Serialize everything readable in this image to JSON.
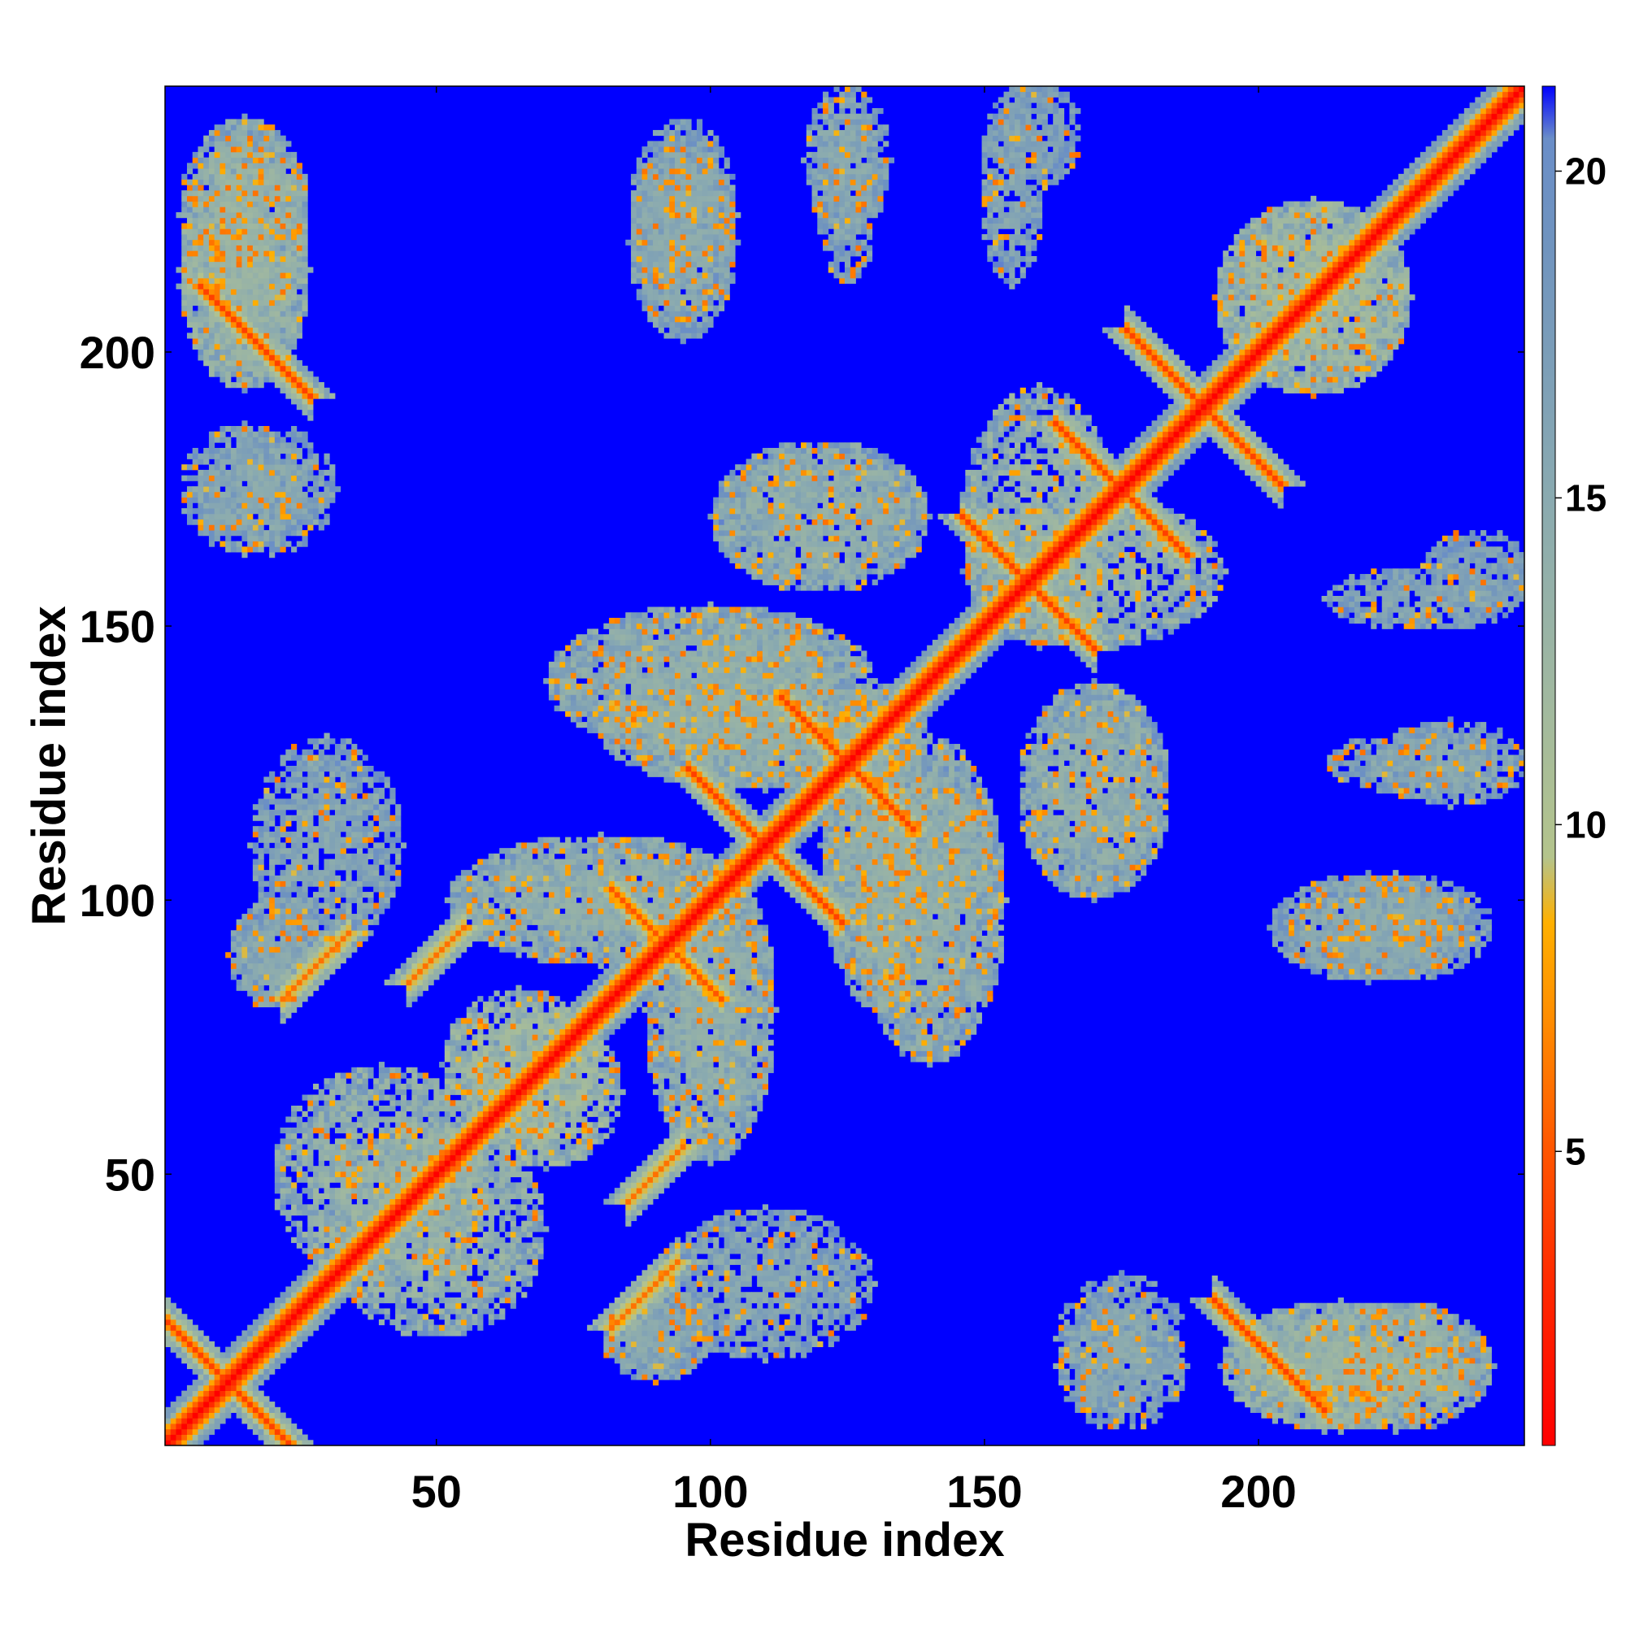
{
  "chart_data": {
    "type": "heatmap",
    "title": "",
    "xlabel": "Residue index",
    "ylabel": "Residue index",
    "n_residues": 248,
    "xlim": [
      1,
      248
    ],
    "ylim": [
      1,
      248
    ],
    "x_ticks": [
      50,
      100,
      150,
      200
    ],
    "y_ticks": [
      50,
      100,
      150,
      200
    ],
    "colorbar": {
      "ticks": [
        5,
        10,
        15,
        20
      ],
      "range": [
        0.5,
        21.3
      ],
      "max_color": "#0000ff"
    },
    "colormap": [
      {
        "value": 0.5,
        "color": "#ff0000"
      },
      {
        "value": 3.0,
        "color": "#ff2a00"
      },
      {
        "value": 5.0,
        "color": "#ff5500"
      },
      {
        "value": 7.0,
        "color": "#ff8c00"
      },
      {
        "value": 8.5,
        "color": "#ffb000"
      },
      {
        "value": 9.5,
        "color": "#b4c48c"
      },
      {
        "value": 12.0,
        "color": "#a0b8a0"
      },
      {
        "value": 15.0,
        "color": "#8aaab0"
      },
      {
        "value": 19.0,
        "color": "#6f93bf"
      },
      {
        "value": 20.5,
        "color": "#6a8ec8"
      },
      {
        "value": 21.3,
        "color": "#0000ff"
      }
    ],
    "background_value": 21.3,
    "diagonal_value": 0.5,
    "contact_features": [
      {
        "type": "antidiagonal",
        "center": [
          12,
          12
        ],
        "half_length": 14,
        "value": 4
      },
      {
        "type": "antidiagonal",
        "center": [
          17,
          202
        ],
        "half_length": 10,
        "value": 4
      },
      {
        "type": "antidiagonal",
        "center": [
          202,
          17
        ],
        "half_length": 10,
        "value": 4
      },
      {
        "type": "antidiagonal",
        "center": [
          110,
          110
        ],
        "half_length": 14,
        "value": 4
      },
      {
        "type": "antidiagonal",
        "center": [
          125,
          125
        ],
        "half_length": 12,
        "value": 4
      },
      {
        "type": "antidiagonal",
        "center": [
          92,
          92
        ],
        "half_length": 10,
        "value": 5
      },
      {
        "type": "antidiagonal",
        "center": [
          158,
          158
        ],
        "half_length": 12,
        "value": 4
      },
      {
        "type": "antidiagonal",
        "center": [
          175,
          175
        ],
        "half_length": 12,
        "value": 4
      },
      {
        "type": "antidiagonal",
        "center": [
          190,
          190
        ],
        "half_length": 14,
        "value": 4
      },
      {
        "type": "diagonal",
        "center": [
          28,
          88
        ],
        "half_length": 6,
        "value": 6
      },
      {
        "type": "diagonal",
        "center": [
          88,
          28
        ],
        "half_length": 6,
        "value": 6
      },
      {
        "type": "diagonal",
        "center": [
          50,
          90
        ],
        "half_length": 5,
        "value": 6
      },
      {
        "type": "diagonal",
        "center": [
          90,
          50
        ],
        "half_length": 5,
        "value": 6
      },
      {
        "type": "diagonal",
        "center": [
          88,
          28
        ],
        "half_length": 5,
        "value": 6
      }
    ],
    "diffuse_regions": [
      {
        "center": [
          15,
          215
        ],
        "radius": [
          12,
          22
        ],
        "value": 14
      },
      {
        "center": [
          215,
          15
        ],
        "radius": [
          22,
          12
        ],
        "value": 14
      },
      {
        "center": [
          225,
          15
        ],
        "radius": [
          18,
          12
        ],
        "value": 15
      },
      {
        "center": [
          15,
          225
        ],
        "radius": [
          12,
          18
        ],
        "value": 15
      },
      {
        "center": [
          95,
          220
        ],
        "radius": [
          10,
          18
        ],
        "value": 16
      },
      {
        "center": [
          220,
          95
        ],
        "radius": [
          18,
          10
        ],
        "value": 16
      },
      {
        "center": [
          125,
          235
        ],
        "radius": [
          8,
          14
        ],
        "value": 16
      },
      {
        "center": [
          160,
          240
        ],
        "radius": [
          8,
          10
        ],
        "value": 17
      },
      {
        "center": [
          110,
          130
        ],
        "radius": [
          30,
          10
        ],
        "value": 15
      },
      {
        "center": [
          130,
          110
        ],
        "radius": [
          10,
          30
        ],
        "value": 15
      },
      {
        "center": [
          80,
          100
        ],
        "radius": [
          28,
          12
        ],
        "value": 15
      },
      {
        "center": [
          100,
          80
        ],
        "radius": [
          12,
          28
        ],
        "value": 15
      },
      {
        "center": [
          140,
          100
        ],
        "radius": [
          14,
          30
        ],
        "value": 15
      },
      {
        "center": [
          100,
          140
        ],
        "radius": [
          30,
          14
        ],
        "value": 15
      },
      {
        "center": [
          170,
          120
        ],
        "radius": [
          14,
          20
        ],
        "value": 15
      },
      {
        "center": [
          120,
          170
        ],
        "radius": [
          20,
          14
        ],
        "value": 15
      },
      {
        "center": [
          230,
          155
        ],
        "radius": [
          18,
          6
        ],
        "value": 16
      },
      {
        "center": [
          230,
          125
        ],
        "radius": [
          18,
          6
        ],
        "value": 16
      },
      {
        "center": [
          225,
          95
        ],
        "radius": [
          18,
          10
        ],
        "value": 16
      },
      {
        "center": [
          30,
          110
        ],
        "radius": [
          14,
          20
        ],
        "value": 16
      },
      {
        "center": [
          40,
          50
        ],
        "radius": [
          20,
          20
        ],
        "value": 14
      },
      {
        "center": [
          65,
          70
        ],
        "radius": [
          14,
          14
        ],
        "value": 13
      },
      {
        "center": [
          175,
          20
        ],
        "radius": [
          12,
          12
        ],
        "value": 16
      },
      {
        "center": [
          15,
          175
        ],
        "radius": [
          12,
          12
        ],
        "value": 16
      },
      {
        "center": [
          160,
          170
        ],
        "radius": [
          14,
          24
        ],
        "value": 14
      },
      {
        "center": [
          210,
          210
        ],
        "radius": [
          18,
          18
        ],
        "value": 13
      },
      {
        "center": [
          90,
          20
        ],
        "radius": [
          10,
          8
        ],
        "value": 16
      },
      {
        "center": [
          20,
          90
        ],
        "radius": [
          8,
          10
        ],
        "value": 16
      }
    ]
  }
}
